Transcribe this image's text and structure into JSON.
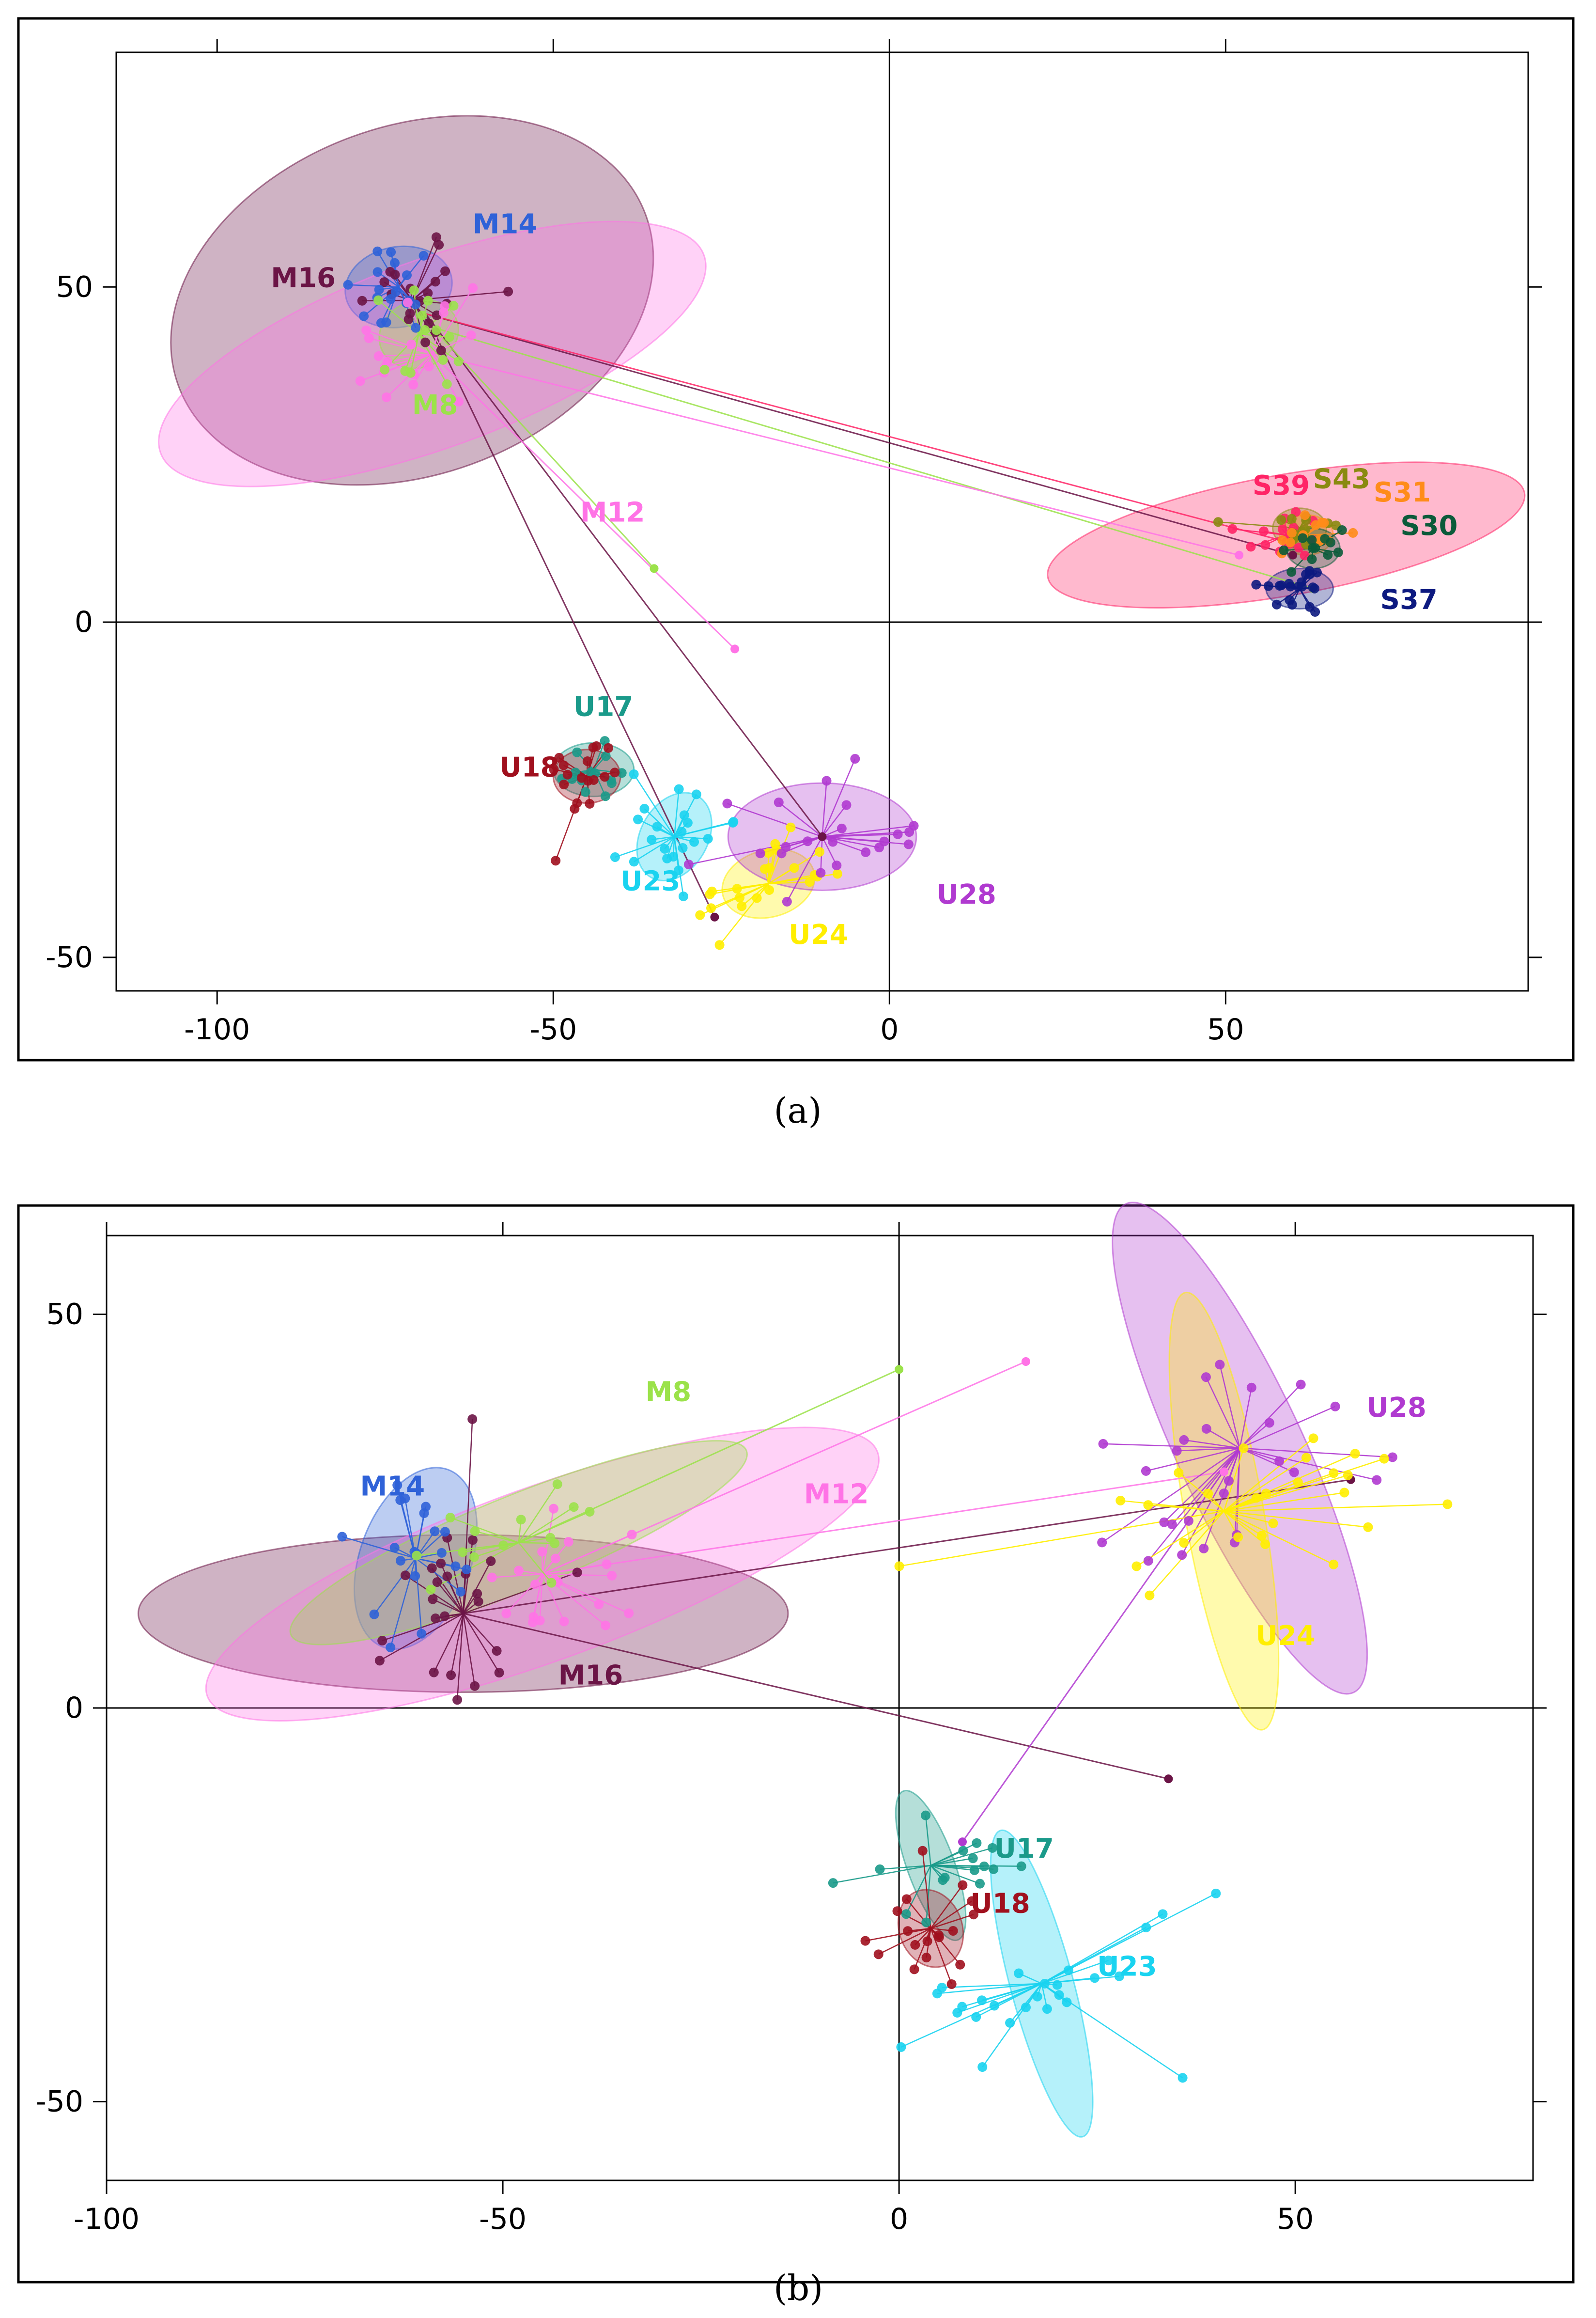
{
  "captions": {
    "a": "(a)",
    "b": "(b)"
  },
  "chart_data": [
    {
      "type": "scatter",
      "panel": "a",
      "title": "",
      "xlabel": "",
      "ylabel": "",
      "xlim": [
        -115,
        95
      ],
      "ylim": [
        -55,
        85
      ],
      "xticks": [
        -100,
        -50,
        0,
        50
      ],
      "yticks": [
        -50,
        0,
        50
      ],
      "xtick_labels": [
        "-100",
        "-50",
        "0",
        "50"
      ],
      "ytick_labels": [
        "-50",
        "0",
        "50"
      ],
      "groups": [
        {
          "name": "M16",
          "color": "#6b1446",
          "center": [
            -71,
            48
          ],
          "ellipse": {
            "rx": 37,
            "ry": 26,
            "angle": -20
          },
          "spread": [
            5,
            5
          ],
          "n": 22,
          "label_at": [
            -92,
            50
          ]
        },
        {
          "name": "M14",
          "color": "#2f62d8",
          "center": [
            -73,
            50
          ],
          "ellipse": {
            "rx": 8,
            "ry": 6,
            "angle": -10
          },
          "spread": [
            4,
            4
          ],
          "n": 18,
          "label_at": [
            -62,
            58
          ]
        },
        {
          "name": "M12",
          "color": "#ff73e6",
          "center": [
            -68,
            40
          ],
          "ellipse": {
            "rx": 43,
            "ry": 14,
            "angle": -20
          },
          "spread": [
            6,
            5
          ],
          "n": 18,
          "label_at": [
            -46,
            15
          ]
        },
        {
          "name": "M8",
          "color": "#9be24a",
          "center": [
            -70,
            43
          ],
          "ellipse": {
            "rx": 6,
            "ry": 5,
            "angle": -20
          },
          "spread": [
            5,
            5
          ],
          "n": 14,
          "label_at": [
            -71,
            31
          ]
        },
        {
          "name": "S39",
          "color": "#ff2466",
          "center": [
            59,
            13
          ],
          "ellipse": {
            "rx": 36,
            "ry": 9,
            "angle": -10
          },
          "spread": [
            3,
            2
          ],
          "n": 16,
          "label_at": [
            54,
            19
          ]
        },
        {
          "name": "S43",
          "color": "#8a8a10",
          "center": [
            61,
            14
          ],
          "ellipse": {
            "rx": 4,
            "ry": 3,
            "angle": 0
          },
          "spread": [
            3,
            2
          ],
          "n": 14,
          "label_at": [
            63,
            20
          ]
        },
        {
          "name": "S31",
          "color": "#ff8c1a",
          "center": [
            62,
            13
          ],
          "ellipse": {
            "rx": 4,
            "ry": 3,
            "angle": 0
          },
          "spread": [
            3,
            2
          ],
          "n": 14,
          "label_at": [
            72,
            18
          ]
        },
        {
          "name": "S30",
          "color": "#0b5b3a",
          "center": [
            63,
            11
          ],
          "ellipse": {
            "rx": 4,
            "ry": 3,
            "angle": 0
          },
          "spread": [
            3,
            2
          ],
          "n": 12,
          "label_at": [
            76,
            13
          ]
        },
        {
          "name": "S37",
          "color": "#0d1a80",
          "center": [
            61,
            5
          ],
          "ellipse": {
            "rx": 5,
            "ry": 3,
            "angle": 0
          },
          "spread": [
            3,
            2
          ],
          "n": 20,
          "label_at": [
            73,
            2
          ]
        },
        {
          "name": "U17",
          "color": "#1a9a8a",
          "center": [
            -44,
            -22
          ],
          "ellipse": {
            "rx": 6,
            "ry": 4,
            "angle": 0
          },
          "spread": [
            3,
            3
          ],
          "n": 14,
          "label_at": [
            -47,
            -14
          ]
        },
        {
          "name": "U18",
          "color": "#a0101e",
          "center": [
            -45,
            -23
          ],
          "ellipse": {
            "rx": 5,
            "ry": 4,
            "angle": 0
          },
          "spread": [
            3,
            3
          ],
          "n": 18,
          "label_at": [
            -58,
            -23
          ]
        },
        {
          "name": "U23",
          "color": "#19d3f0",
          "center": [
            -32,
            -32
          ],
          "ellipse": {
            "rx": 5,
            "ry": 7,
            "angle": 30
          },
          "spread": [
            4,
            5
          ],
          "n": 22,
          "label_at": [
            -40,
            -40
          ]
        },
        {
          "name": "U24",
          "color": "#ffee00",
          "center": [
            -18,
            -39
          ],
          "ellipse": {
            "rx": 7,
            "ry": 5,
            "angle": -15
          },
          "spread": [
            6,
            3
          ],
          "n": 22,
          "label_at": [
            -15,
            -48
          ]
        },
        {
          "name": "U28",
          "color": "#b03ad0",
          "center": [
            -10,
            -32
          ],
          "ellipse": {
            "rx": 14,
            "ry": 8,
            "angle": 0
          },
          "spread": [
            8,
            5
          ],
          "n": 22,
          "label_at": [
            7,
            -42
          ]
        }
      ],
      "long_links": [
        {
          "color": "#6b1446",
          "from": [
            -69,
            46
          ],
          "to": [
            -10,
            -32
          ]
        },
        {
          "color": "#6b1446",
          "from": [
            -69,
            46
          ],
          "to": [
            -26,
            -44
          ]
        },
        {
          "color": "#9be24a",
          "from": [
            -68,
            44
          ],
          "to": [
            63,
            5
          ]
        },
        {
          "color": "#9be24a",
          "from": [
            -68,
            44
          ],
          "to": [
            -35,
            8
          ]
        },
        {
          "color": "#ff73e6",
          "from": [
            -68,
            40
          ],
          "to": [
            -23,
            -4
          ]
        },
        {
          "color": "#ff73e6",
          "from": [
            -68,
            40
          ],
          "to": [
            52,
            10
          ]
        },
        {
          "color": "#6b1446",
          "from": [
            -69,
            46
          ],
          "to": [
            60,
            10
          ]
        },
        {
          "color": "#ff2466",
          "from": [
            -69,
            46
          ],
          "to": [
            59,
            12
          ]
        }
      ]
    },
    {
      "type": "scatter",
      "panel": "b",
      "title": "",
      "xlabel": "",
      "ylabel": "",
      "xlim": [
        -100,
        80
      ],
      "ylim": [
        -60,
        60
      ],
      "xticks": [
        -100,
        -50,
        0,
        50
      ],
      "yticks": [
        -50,
        0,
        50
      ],
      "xtick_labels": [
        "-100",
        "-50",
        "0",
        "50"
      ],
      "ytick_labels": [
        "-50",
        "0",
        "50"
      ],
      "groups": [
        {
          "name": "M16",
          "color": "#6b1446",
          "center": [
            -55,
            12
          ],
          "ellipse": {
            "rx": 41,
            "ry": 10,
            "angle": 0
          },
          "spread": [
            7,
            7
          ],
          "n": 24,
          "label_at": [
            -43,
            3
          ]
        },
        {
          "name": "M14",
          "color": "#2f62d8",
          "center": [
            -61,
            19
          ],
          "ellipse": {
            "rx": 7,
            "ry": 12,
            "angle": 20
          },
          "spread": [
            4,
            5
          ],
          "n": 20,
          "label_at": [
            -68,
            27
          ]
        },
        {
          "name": "M12",
          "color": "#ff73e6",
          "center": [
            -45,
            17
          ],
          "ellipse": {
            "rx": 45,
            "ry": 11,
            "angle": -20
          },
          "spread": [
            7,
            5
          ],
          "n": 20,
          "label_at": [
            -12,
            26
          ]
        },
        {
          "name": "M8",
          "color": "#9be24a",
          "center": [
            -48,
            21
          ],
          "ellipse": {
            "rx": 31,
            "ry": 6,
            "angle": -22
          },
          "spread": [
            5,
            4
          ],
          "n": 14,
          "label_at": [
            -32,
            39
          ]
        },
        {
          "name": "U28",
          "color": "#b03ad0",
          "center": [
            43,
            33
          ],
          "ellipse": {
            "rx": 34,
            "ry": 8,
            "angle": 65
          },
          "spread": [
            6,
            10
          ],
          "n": 26,
          "label_at": [
            59,
            37
          ]
        },
        {
          "name": "U24",
          "color": "#ffee00",
          "center": [
            41,
            25
          ],
          "ellipse": {
            "rx": 28,
            "ry": 5,
            "angle": 80
          },
          "spread": [
            4,
            14
          ],
          "n": 26,
          "label_at": [
            45,
            8
          ]
        },
        {
          "name": "U17",
          "color": "#1a9a8a",
          "center": [
            4,
            -20
          ],
          "ellipse": {
            "rx": 10,
            "ry": 3,
            "angle": 70
          },
          "spread": [
            3,
            5
          ],
          "n": 16,
          "label_at": [
            12,
            -19
          ]
        },
        {
          "name": "U18",
          "color": "#a0101e",
          "center": [
            4,
            -28
          ],
          "ellipse": {
            "rx": 5,
            "ry": 4,
            "angle": 70
          },
          "spread": [
            3,
            4
          ],
          "n": 18,
          "label_at": [
            9,
            -26
          ]
        },
        {
          "name": "U23",
          "color": "#19d3f0",
          "center": [
            18,
            -35
          ],
          "ellipse": {
            "rx": 20,
            "ry": 4,
            "angle": 75
          },
          "spread": [
            4,
            10
          ],
          "n": 26,
          "label_at": [
            25,
            -34
          ]
        }
      ],
      "long_links": [
        {
          "color": "#ff73e6",
          "from": [
            -45,
            17
          ],
          "to": [
            16,
            44
          ]
        },
        {
          "color": "#9be24a",
          "from": [
            -48,
            21
          ],
          "to": [
            0,
            43
          ]
        },
        {
          "color": "#ff73e6",
          "from": [
            -45,
            17
          ],
          "to": [
            41,
            30
          ]
        },
        {
          "color": "#6b1446",
          "from": [
            -55,
            12
          ],
          "to": [
            57,
            29
          ]
        },
        {
          "color": "#6b1446",
          "from": [
            -55,
            12
          ],
          "to": [
            34,
            -9
          ]
        },
        {
          "color": "#b03ad0",
          "from": [
            43,
            33
          ],
          "to": [
            8,
            -17
          ]
        }
      ]
    }
  ]
}
